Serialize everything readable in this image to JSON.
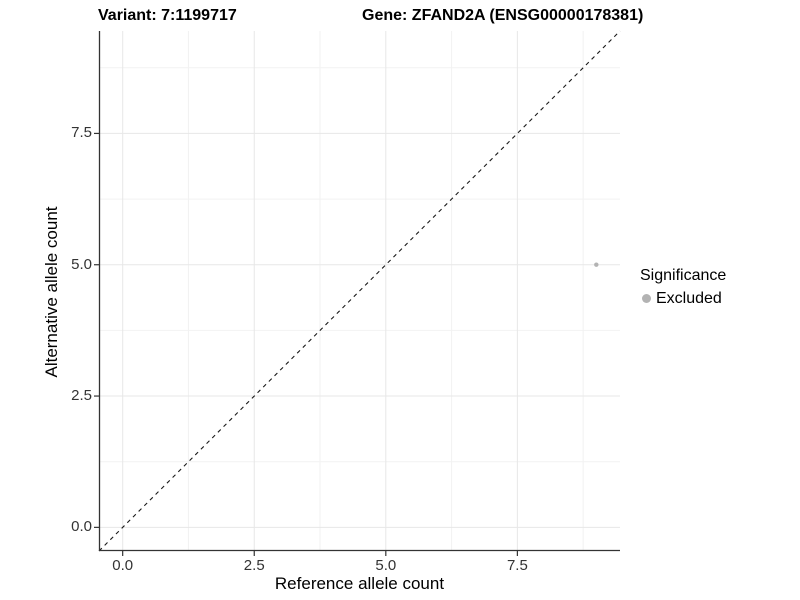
{
  "chart_data": {
    "type": "scatter",
    "title_variant": "Variant: 7:1199717",
    "title_gene": "Gene: ZFAND2A (ENSG00000178381)",
    "xlabel": "Reference allele count",
    "ylabel": "Alternative allele count",
    "xlim": [
      -0.45,
      9.45
    ],
    "ylim": [
      -0.45,
      9.45
    ],
    "x_major_ticks": [
      0.0,
      2.5,
      5.0,
      7.5
    ],
    "y_major_ticks": [
      0.0,
      2.5,
      5.0,
      7.5
    ],
    "x_minor_gridlines": [
      1.25,
      3.75,
      6.25,
      8.75
    ],
    "y_minor_gridlines": [
      1.25,
      3.75,
      6.25,
      8.75
    ],
    "grid": "major+minor",
    "identity_line": {
      "style": "dashed",
      "x1": -0.45,
      "y1": -0.45,
      "x2": 9.45,
      "y2": 9.45
    },
    "series": [
      {
        "name": "Excluded",
        "color": "#b3b3b3",
        "point_radius": 2.2,
        "points": [
          {
            "x": 9,
            "y": 5
          }
        ]
      }
    ],
    "legend": {
      "title": "Significance",
      "position": "right",
      "items": [
        {
          "label": "Excluded",
          "color": "#b3b3b3"
        }
      ]
    }
  },
  "colors": {
    "background": "#ffffff",
    "grid_major": "#e7e7e7",
    "grid_minor": "#f2f2f2",
    "axis_line": "#333333",
    "tick_mark": "#333333",
    "tick_label": "#333333",
    "identity_line": "#1a1a1a",
    "title_text": "#000000"
  }
}
